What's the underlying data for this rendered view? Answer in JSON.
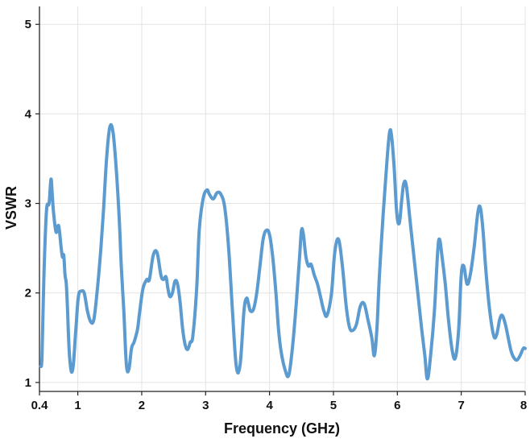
{
  "chart_data": {
    "type": "line",
    "title": "",
    "xlabel": "Frequency (GHz)",
    "ylabel": "VSWR",
    "xlim": [
      0.4,
      8
    ],
    "ylim": [
      0.9,
      5.2
    ],
    "grid": true,
    "xticks": [
      0.4,
      1,
      2,
      3,
      4,
      5,
      6,
      7,
      8
    ],
    "xtick_labels": [
      "0.4",
      "1",
      "2",
      "3",
      "4",
      "5",
      "6",
      "7",
      "8"
    ],
    "yticks": [
      1,
      2,
      3,
      4,
      5
    ],
    "ytick_labels": [
      "1",
      "2",
      "3",
      "4",
      "5"
    ],
    "colors": {
      "line": "#5b9bd0"
    },
    "series": [
      {
        "x": [
          0.42,
          0.44,
          0.47,
          0.51,
          0.55,
          0.58,
          0.6,
          0.62,
          0.66,
          0.7,
          0.74,
          0.76,
          0.78,
          0.8,
          0.82,
          0.84,
          0.85,
          0.87,
          0.9,
          0.93,
          0.96,
          0.98,
          1.0,
          1.02,
          1.05,
          1.1,
          1.15,
          1.2,
          1.25,
          1.3,
          1.35,
          1.4,
          1.45,
          1.5,
          1.55,
          1.6,
          1.65,
          1.68,
          1.72,
          1.76,
          1.8,
          1.84,
          1.88,
          1.92,
          1.94,
          1.97,
          2.02,
          2.08,
          2.12,
          2.18,
          2.24,
          2.3,
          2.34,
          2.38,
          2.41,
          2.44,
          2.48,
          2.52,
          2.56,
          2.6,
          2.64,
          2.68,
          2.72,
          2.76,
          2.8,
          2.86,
          2.9,
          2.96,
          3.02,
          3.06,
          3.12,
          3.18,
          3.24,
          3.3,
          3.36,
          3.42,
          3.48,
          3.54,
          3.6,
          3.64,
          3.67,
          3.7,
          3.75,
          3.8,
          3.85,
          3.9,
          3.95,
          4.0,
          4.05,
          4.1,
          4.14,
          4.18,
          4.24,
          4.3,
          4.36,
          4.42,
          4.47,
          4.5,
          4.53,
          4.57,
          4.61,
          4.65,
          4.7,
          4.75,
          4.8,
          4.85,
          4.9,
          4.97,
          5.02,
          5.08,
          5.14,
          5.2,
          5.25,
          5.3,
          5.36,
          5.42,
          5.48,
          5.54,
          5.6,
          5.64,
          5.68,
          5.72,
          5.78,
          5.84,
          5.88,
          5.91,
          5.95,
          5.99,
          6.03,
          6.07,
          6.1,
          6.14,
          6.2,
          6.26,
          6.32,
          6.38,
          6.43,
          6.47,
          6.52,
          6.58,
          6.63,
          6.66,
          6.7,
          6.75,
          6.8,
          6.86,
          6.91,
          6.96,
          7.0,
          7.04,
          7.09,
          7.14,
          7.2,
          7.26,
          7.3,
          7.34,
          7.38,
          7.43,
          7.48,
          7.52,
          7.56,
          7.6,
          7.64,
          7.69,
          7.74,
          7.78,
          7.82,
          7.87,
          7.92,
          7.97,
          8.0
        ],
        "y": [
          1.18,
          1.3,
          2.2,
          2.92,
          3.0,
          3.27,
          3.1,
          2.9,
          2.68,
          2.75,
          2.5,
          2.4,
          2.42,
          2.2,
          2.1,
          1.8,
          1.6,
          1.3,
          1.12,
          1.2,
          1.5,
          1.7,
          1.9,
          2.0,
          2.02,
          2.0,
          1.8,
          1.68,
          1.7,
          2.0,
          2.4,
          2.9,
          3.5,
          3.85,
          3.8,
          3.4,
          2.8,
          2.3,
          1.8,
          1.2,
          1.15,
          1.38,
          1.45,
          1.55,
          1.62,
          1.8,
          2.05,
          2.15,
          2.15,
          2.42,
          2.45,
          2.2,
          2.15,
          2.18,
          2.05,
          1.96,
          2.0,
          2.13,
          2.1,
          1.9,
          1.6,
          1.42,
          1.37,
          1.45,
          1.52,
          2.05,
          2.7,
          3.05,
          3.15,
          3.1,
          3.05,
          3.12,
          3.1,
          2.95,
          2.5,
          1.8,
          1.18,
          1.2,
          1.8,
          1.94,
          1.88,
          1.8,
          1.82,
          2.0,
          2.3,
          2.6,
          2.7,
          2.65,
          2.4,
          2.0,
          1.6,
          1.35,
          1.15,
          1.08,
          1.4,
          1.9,
          2.4,
          2.7,
          2.65,
          2.4,
          2.3,
          2.32,
          2.2,
          2.1,
          1.95,
          1.8,
          1.75,
          2.0,
          2.45,
          2.6,
          2.3,
          1.85,
          1.62,
          1.58,
          1.65,
          1.85,
          1.88,
          1.7,
          1.5,
          1.3,
          1.6,
          2.2,
          2.9,
          3.5,
          3.8,
          3.75,
          3.4,
          2.9,
          2.78,
          3.05,
          3.22,
          3.2,
          2.8,
          2.4,
          2.0,
          1.6,
          1.3,
          1.04,
          1.3,
          1.8,
          2.45,
          2.6,
          2.4,
          2.1,
          1.7,
          1.35,
          1.28,
          1.6,
          2.2,
          2.3,
          2.1,
          2.2,
          2.5,
          2.9,
          2.95,
          2.7,
          2.3,
          1.9,
          1.62,
          1.5,
          1.55,
          1.7,
          1.75,
          1.65,
          1.48,
          1.35,
          1.28,
          1.25,
          1.3,
          1.38,
          1.38
        ]
      }
    ]
  }
}
